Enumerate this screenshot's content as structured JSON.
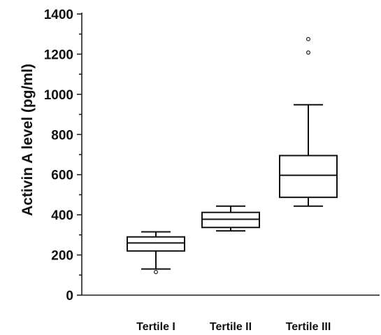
{
  "chart_data": {
    "type": "box",
    "title": "",
    "xlabel": "",
    "ylabel": "Activin A level (pg/ml)",
    "ylim": [
      0,
      1400
    ],
    "yticks": [
      0,
      200,
      400,
      600,
      800,
      1000,
      1200,
      1400
    ],
    "categories": [
      "Tertile I",
      "Tertile II",
      "Tertile III"
    ],
    "boxes": [
      {
        "category": "Tertile I",
        "min": 130,
        "q1": 220,
        "median": 260,
        "q3": 290,
        "max": 315,
        "outliers": [
          115
        ]
      },
      {
        "category": "Tertile II",
        "min": 320,
        "q1": 337,
        "median": 378,
        "q3": 412,
        "max": 443,
        "outliers": []
      },
      {
        "category": "Tertile III",
        "min": 443,
        "q1": 487,
        "median": 597,
        "q3": 695,
        "max": 948,
        "outliers": [
          1208,
          1275
        ]
      }
    ],
    "grid": false
  }
}
